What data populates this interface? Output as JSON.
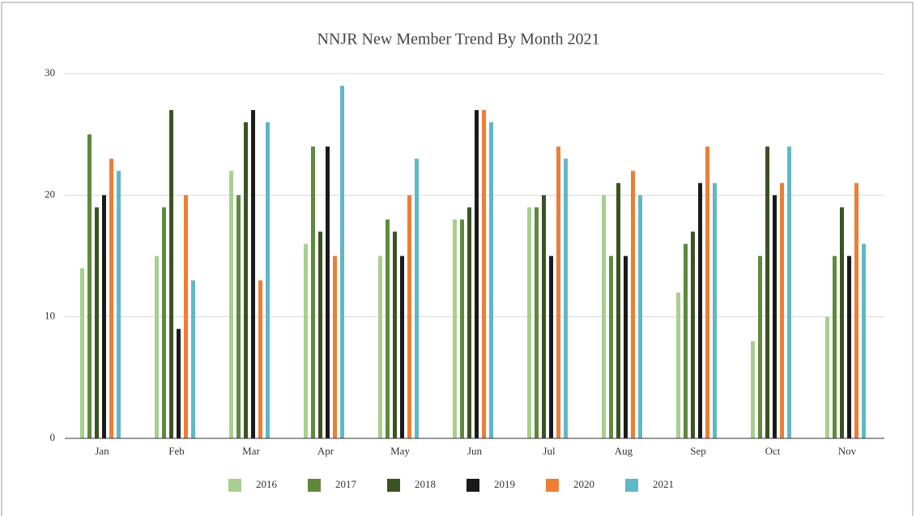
{
  "chart_data": {
    "type": "bar",
    "title": "NNJR New Member Trend By Month 2021",
    "categories": [
      "Jan",
      "Feb",
      "Mar",
      "Apr",
      "May",
      "Jun",
      "Jul",
      "Aug",
      "Sep",
      "Oct",
      "Nov"
    ],
    "series": [
      {
        "name": "2016",
        "color": "#a8cf8e",
        "values": [
          14,
          15,
          22,
          16,
          15,
          18,
          19,
          20,
          12,
          8,
          10
        ]
      },
      {
        "name": "2017",
        "color": "#5e8a3c",
        "values": [
          25,
          19,
          20,
          24,
          18,
          18,
          19,
          15,
          16,
          15,
          15
        ]
      },
      {
        "name": "2018",
        "color": "#3b5323",
        "values": [
          19,
          27,
          26,
          17,
          17,
          19,
          20,
          21,
          17,
          24,
          19
        ]
      },
      {
        "name": "2019",
        "color": "#1a1a1a",
        "values": [
          20,
          9,
          27,
          24,
          15,
          27,
          15,
          15,
          21,
          20,
          15
        ]
      },
      {
        "name": "2020",
        "color": "#ef7d33",
        "values": [
          23,
          20,
          13,
          15,
          20,
          27,
          24,
          22,
          24,
          21,
          21
        ]
      },
      {
        "name": "2021",
        "color": "#5fb8c8",
        "values": [
          22,
          13,
          26,
          29,
          23,
          26,
          23,
          20,
          21,
          24,
          16
        ]
      }
    ],
    "ylim": [
      0,
      30
    ],
    "yticks": [
      0,
      10,
      20,
      30
    ],
    "grid": true,
    "legend": "bottom"
  }
}
